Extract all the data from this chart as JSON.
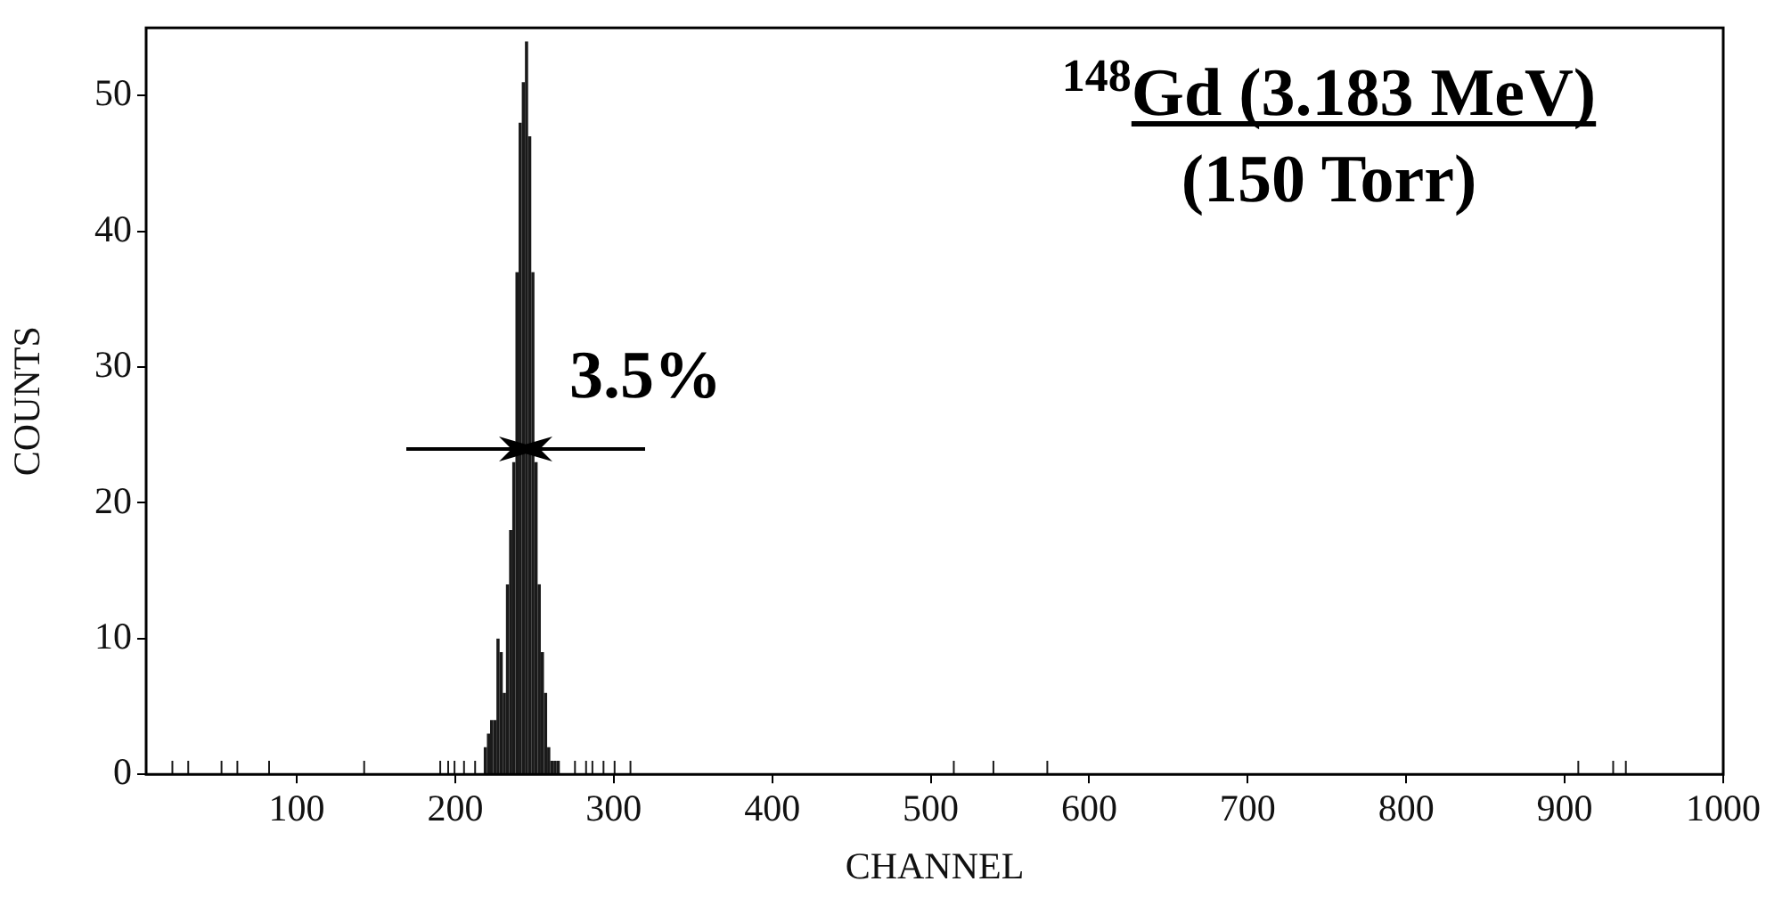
{
  "chart_data": {
    "type": "histogram",
    "xlabel": "CHANNEL",
    "ylabel": "COUNTS",
    "bins": [
      21,
      22,
      31,
      32,
      52,
      53,
      62,
      63,
      82,
      83,
      142,
      143,
      190,
      191,
      195,
      196,
      199,
      200,
      205,
      206,
      212,
      213,
      218,
      220,
      222,
      224,
      226,
      228,
      230,
      232,
      234,
      236,
      238,
      240,
      242,
      244,
      246,
      248,
      250,
      252,
      254,
      256,
      258,
      260,
      262,
      264,
      266,
      275,
      276,
      282,
      283,
      286,
      287,
      293,
      294,
      300,
      301,
      310,
      311,
      514,
      515,
      539,
      540,
      573,
      574,
      908,
      909,
      930,
      931,
      938,
      939
    ],
    "values": [
      1,
      0,
      1,
      0,
      1,
      0,
      1,
      0,
      1,
      0,
      1,
      0,
      1,
      0,
      1,
      0,
      1,
      0,
      1,
      0,
      1,
      0,
      2,
      3,
      4,
      4,
      10,
      9,
      6,
      14,
      18,
      23,
      37,
      48,
      51,
      54,
      47,
      37,
      23,
      14,
      9,
      6,
      2,
      1,
      1,
      1,
      0,
      1,
      0,
      1,
      0,
      1,
      0,
      1,
      0,
      1,
      0,
      1,
      0,
      1,
      0,
      1,
      0,
      1,
      0,
      1,
      0,
      1,
      0,
      1
    ],
    "color": "#1a1a1a",
    "xlim": [
      5,
      1000
    ],
    "xticks": [
      100,
      200,
      300,
      400,
      500,
      600,
      700,
      800,
      900,
      1000
    ],
    "ylim": [
      0,
      55
    ],
    "yticks": [
      0,
      10,
      20,
      30,
      40,
      50
    ],
    "grid": false,
    "legend": false,
    "annotations": [
      "$^{148}$Gd (3.183 MeV)",
      "(150 Torr)",
      {
        "text": "3.5%",
        "x": 245,
        "y": 24
      }
    ]
  }
}
